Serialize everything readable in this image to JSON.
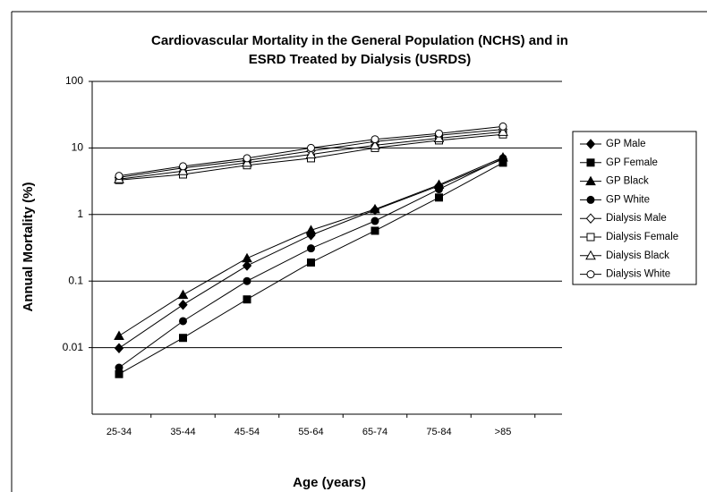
{
  "chart_data": {
    "type": "line",
    "title": [
      "Cardiovascular Mortality in the General Population (NCHS) and in",
      "ESRD Treated by Dialysis (USRDS)"
    ],
    "x_label": "Age (years)",
    "y_label": "Annual Mortality (%)",
    "categories": [
      "25-34",
      "35-44",
      "45-54",
      "55-64",
      "65-74",
      "75-84",
      ">85"
    ],
    "log_scale": true,
    "ylim": [
      0.001,
      100
    ],
    "yticks": [
      0.01,
      0.1,
      1,
      10,
      100
    ],
    "grid": true,
    "legend": "right",
    "series": [
      {
        "name": "GP Male",
        "color": "#000000",
        "marker": "diamond",
        "filled": true,
        "values": [
          0.0098,
          0.044,
          0.17,
          0.49,
          1.17,
          2.7,
          6.8
        ]
      },
      {
        "name": "GP Female",
        "color": "#000000",
        "marker": "square",
        "filled": true,
        "values": [
          0.004,
          0.014,
          0.053,
          0.19,
          0.57,
          1.8,
          6.0
        ]
      },
      {
        "name": "GP Black",
        "color": "#000000",
        "marker": "triangle",
        "filled": true,
        "values": [
          0.015,
          0.062,
          0.22,
          0.58,
          1.2,
          2.8,
          7.2
        ]
      },
      {
        "name": "GP White",
        "color": "#000000",
        "marker": "circle",
        "filled": true,
        "values": [
          0.005,
          0.025,
          0.1,
          0.31,
          0.8,
          2.4,
          7.0
        ]
      },
      {
        "name": "Dialysis Male",
        "color": "#000000",
        "marker": "diamond",
        "filled": false,
        "values": [
          3.6,
          5.0,
          6.5,
          9.0,
          12.5,
          15.5,
          19
        ]
      },
      {
        "name": "Dialysis Female",
        "color": "#000000",
        "marker": "square",
        "filled": false,
        "values": [
          3.3,
          4.0,
          5.5,
          7.0,
          10.0,
          13.0,
          16
        ]
      },
      {
        "name": "Dialysis Black",
        "color": "#000000",
        "marker": "triangle",
        "filled": false,
        "values": [
          3.4,
          4.5,
          6.0,
          8.0,
          11.0,
          14.0,
          17.5
        ]
      },
      {
        "name": "Dialysis White",
        "color": "#000000",
        "marker": "circle",
        "filled": false,
        "values": [
          3.8,
          5.3,
          7.0,
          10.0,
          13.5,
          16.5,
          21
        ]
      }
    ]
  }
}
